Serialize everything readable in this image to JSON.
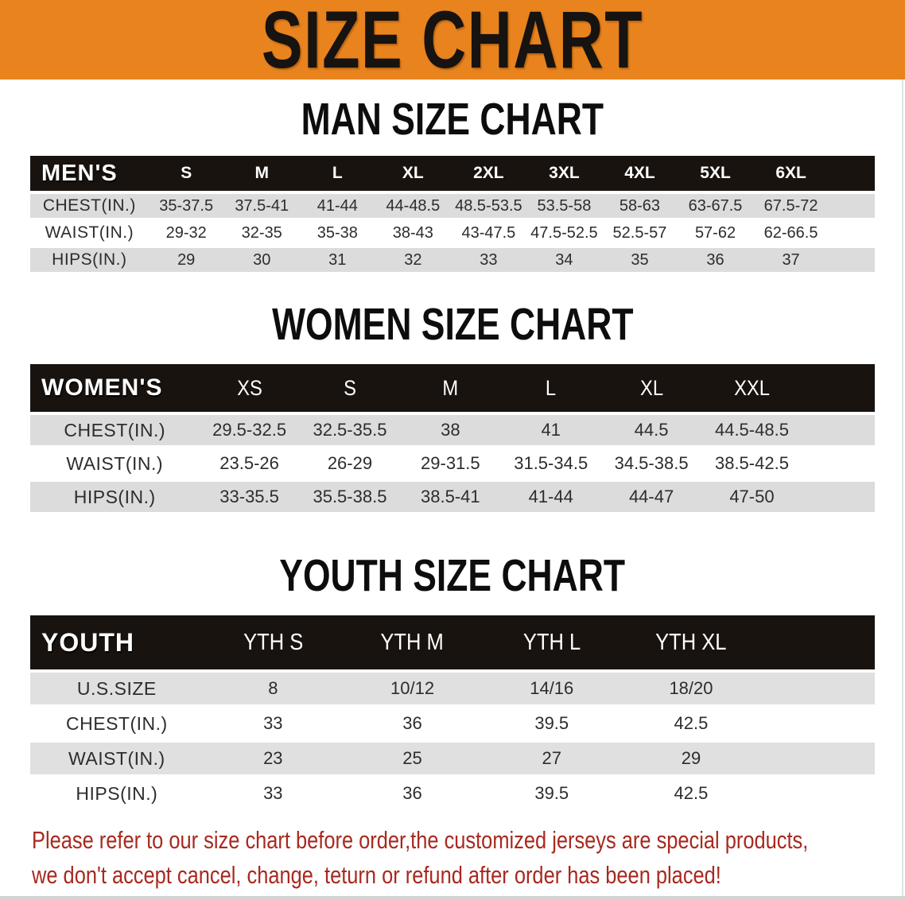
{
  "banner": {
    "title": "SIZE CHART"
  },
  "sections": [
    {
      "heading": "MAN SIZE CHART",
      "table": {
        "header_label": "MEN'S",
        "columns": [
          "S",
          "M",
          "L",
          "XL",
          "2XL",
          "3XL",
          "4XL",
          "5XL",
          "6XL"
        ],
        "rows": [
          {
            "label": "CHEST(IN.)",
            "values": [
              "35-37.5",
              "37.5-41",
              "41-44",
              "44-48.5",
              "48.5-53.5",
              "53.5-58",
              "58-63",
              "63-67.5",
              "67.5-72"
            ]
          },
          {
            "label": "WAIST(IN.)",
            "values": [
              "29-32",
              "32-35",
              "35-38",
              "38-43",
              "43-47.5",
              "47.5-52.5",
              "52.5-57",
              "57-62",
              "62-66.5"
            ]
          },
          {
            "label": "HIPS(IN.)",
            "values": [
              "29",
              "30",
              "31",
              "32",
              "33",
              "34",
              "35",
              "36",
              "37"
            ]
          }
        ]
      }
    },
    {
      "heading": "WOMEN SIZE CHART",
      "table": {
        "header_label": "WOMEN'S",
        "columns": [
          "XS",
          "S",
          "M",
          "L",
          "XL",
          "XXL"
        ],
        "rows": [
          {
            "label": "CHEST(IN.)",
            "values": [
              "29.5-32.5",
              "32.5-35.5",
              "38",
              "41",
              "44.5",
              "44.5-48.5"
            ]
          },
          {
            "label": "WAIST(IN.)",
            "values": [
              "23.5-26",
              "26-29",
              "29-31.5",
              "31.5-34.5",
              "34.5-38.5",
              "38.5-42.5"
            ]
          },
          {
            "label": "HIPS(IN.)",
            "values": [
              "33-35.5",
              "35.5-38.5",
              "38.5-41",
              "41-44",
              "44-47",
              "47-50"
            ]
          }
        ]
      }
    },
    {
      "heading": "YOUTH SIZE CHART",
      "table": {
        "header_label": "YOUTH",
        "columns": [
          "YTH S",
          "YTH M",
          "YTH L",
          "YTH XL"
        ],
        "rows": [
          {
            "label": "U.S.SIZE",
            "values": [
              "8",
              "10/12",
              "14/16",
              "18/20"
            ]
          },
          {
            "label": "CHEST(IN.)",
            "values": [
              "33",
              "36",
              "39.5",
              "42.5"
            ]
          },
          {
            "label": "WAIST(IN.)",
            "values": [
              "23",
              "25",
              "27",
              "29"
            ]
          },
          {
            "label": "HIPS(IN.)",
            "values": [
              "33",
              "36",
              "39.5",
              "42.5"
            ]
          }
        ]
      }
    }
  ],
  "disclaimer": {
    "line1": "Please refer to our size chart before order,the customized jerseys are special products,",
    "line2": "we don't accept cancel, change, teturn or refund after order has been placed!"
  },
  "colors": {
    "banner_bg": "#E8831E",
    "header_band": "#19130F",
    "row_gray": "#DCDCDC",
    "row_white": "#FFFFFF",
    "disclaimer_red": "#A8291F"
  }
}
